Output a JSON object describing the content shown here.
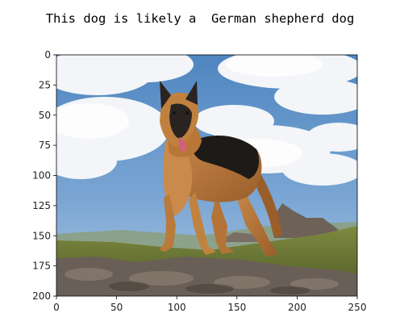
{
  "output": {
    "prefix": "This dog is likely a ",
    "breed": "German shepherd dog"
  },
  "figure": {
    "image_subject": "German shepherd dog standing on rocky grassy hill under blue sky with clouds",
    "x_ticks": [
      "0",
      "50",
      "100",
      "150",
      "200",
      "250"
    ],
    "y_ticks": [
      "0",
      "25",
      "50",
      "75",
      "100",
      "125",
      "150",
      "175",
      "200"
    ],
    "x_range": [
      0,
      250
    ],
    "y_range": [
      0,
      200
    ],
    "colors": {
      "sky": "#5e8fc4",
      "cloud": "#f2f4f8",
      "grass": "#6f7a36",
      "rock": "#6b5f56",
      "dog_tan": "#b8773a",
      "dog_black": "#1e1a17"
    }
  }
}
